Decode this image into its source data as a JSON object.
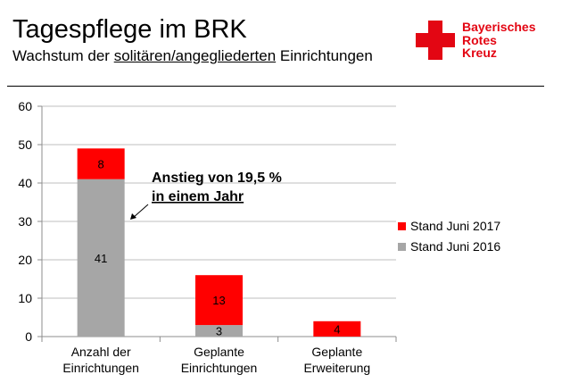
{
  "header": {
    "title": "Tagespflege im BRK",
    "subtitle_before": "Wachstum der ",
    "subtitle_underlined": "solitären/angegliederten",
    "subtitle_after": " Einrichtungen"
  },
  "logo": {
    "line1": "Bayerisches",
    "line2": "Rotes",
    "line3": "Kreuz",
    "color": "#e30613"
  },
  "annotation": {
    "line1": "Anstieg von 19,5 %",
    "line2": "in einem Jahr"
  },
  "chart_data": {
    "type": "bar",
    "stacked": true,
    "categories": [
      [
        "Anzahl der",
        "Einrichtungen"
      ],
      [
        "Geplante",
        "Einrichtungen"
      ],
      [
        "Geplante",
        "Erweiterung"
      ]
    ],
    "series": [
      {
        "name": "Stand Juni 2016",
        "values": [
          41,
          3,
          0
        ],
        "color": "#a6a6a6"
      },
      {
        "name": "Stand Juni 2017",
        "values": [
          8,
          13,
          4
        ],
        "color": "#ff0000"
      }
    ],
    "yticks": [
      0,
      10,
      20,
      30,
      40,
      50,
      60
    ],
    "ylim": [
      0,
      60
    ],
    "grid": true,
    "legend_position": "right"
  }
}
